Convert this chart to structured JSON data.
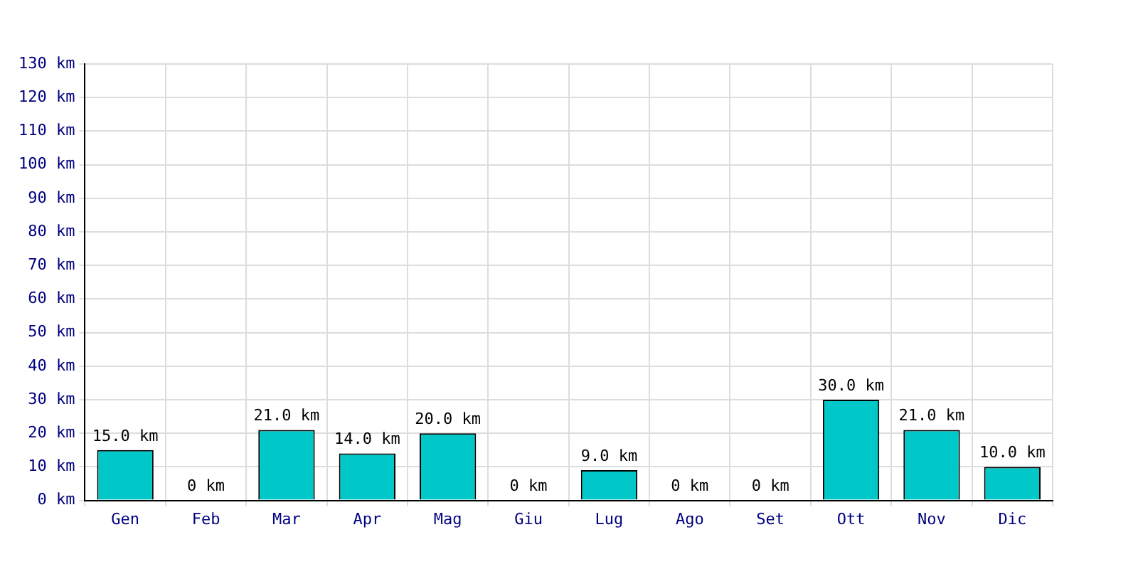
{
  "chart_data": {
    "type": "bar",
    "categories": [
      "Gen",
      "Feb",
      "Mar",
      "Apr",
      "Mag",
      "Giu",
      "Lug",
      "Ago",
      "Set",
      "Ott",
      "Nov",
      "Dic"
    ],
    "values": [
      15,
      0,
      21,
      14,
      20,
      0,
      9,
      0,
      0,
      30,
      21,
      10
    ],
    "value_labels": [
      "15.0 km",
      "0 km",
      "21.0 km",
      "14.0 km",
      "20.0 km",
      "0 km",
      "9.0 km",
      "0 km",
      "0 km",
      "30.0 km",
      "21.0 km",
      "10.0 km"
    ],
    "color": "#00c8c8",
    "ylim": [
      0,
      130
    ],
    "yticks": [
      {
        "value": 0,
        "label": "0 km"
      },
      {
        "value": 10,
        "label": "10 km"
      },
      {
        "value": 20,
        "label": "20 km"
      },
      {
        "value": 30,
        "label": "30 km"
      },
      {
        "value": 40,
        "label": "40 km"
      },
      {
        "value": 50,
        "label": "50 km"
      },
      {
        "value": 60,
        "label": "60 km"
      },
      {
        "value": 70,
        "label": "70 km"
      },
      {
        "value": 80,
        "label": "80 km"
      },
      {
        "value": 90,
        "label": "90 km"
      },
      {
        "value": 100,
        "label": "100 km"
      },
      {
        "value": 110,
        "label": "110 km"
      },
      {
        "value": 120,
        "label": "120 km"
      },
      {
        "value": 130,
        "label": "130 km"
      }
    ],
    "grid": true,
    "legend": false
  }
}
